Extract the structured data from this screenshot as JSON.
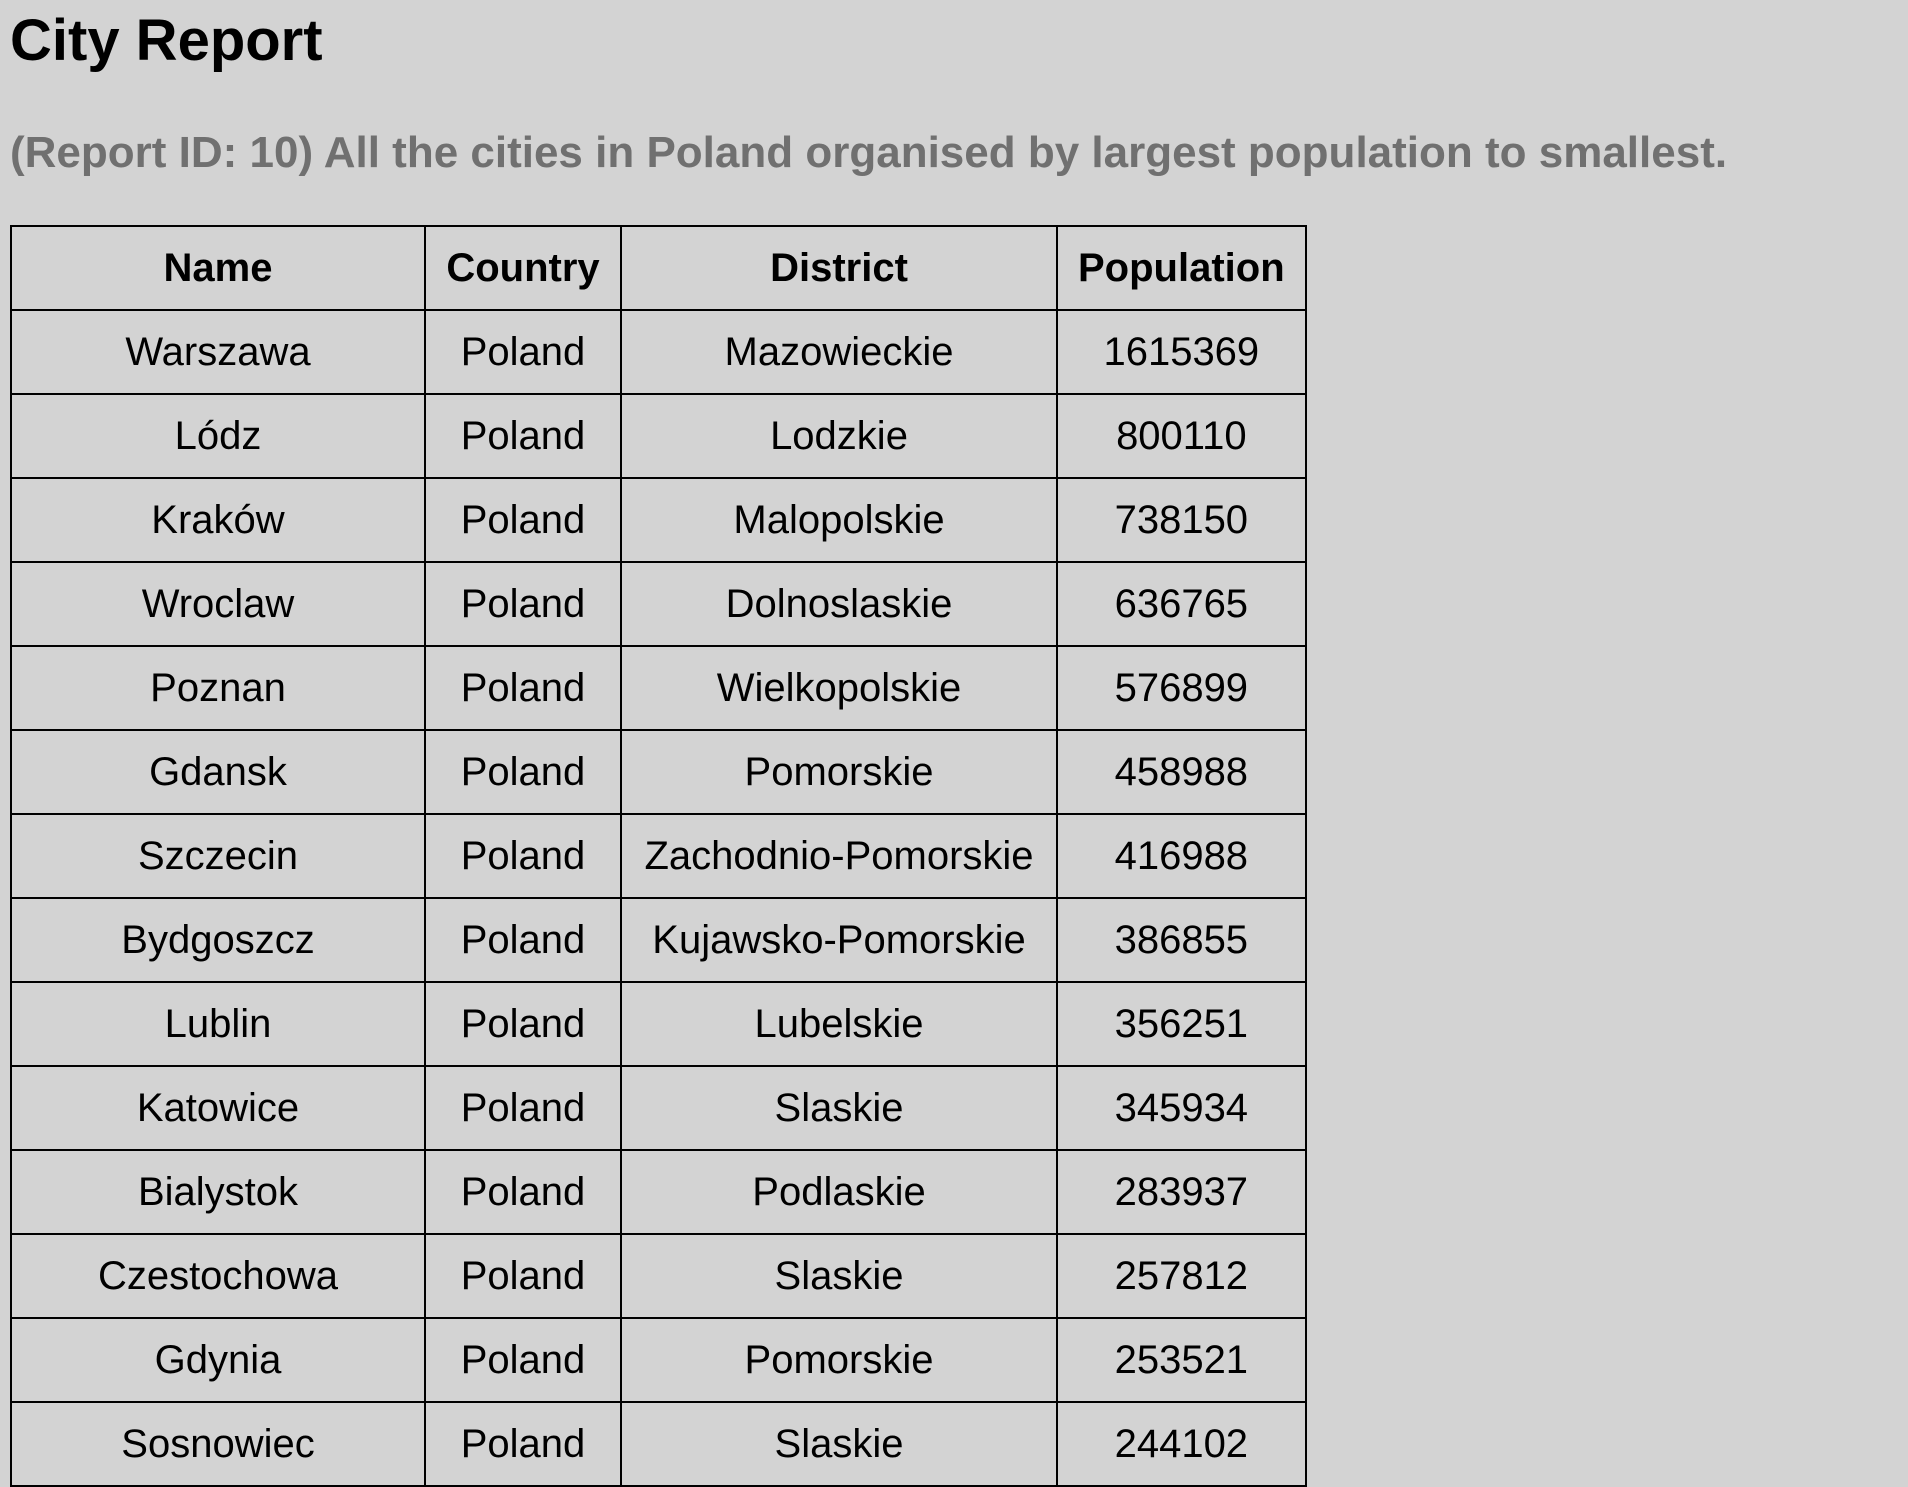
{
  "report": {
    "title": "City Report",
    "subtitle": "(Report ID: 10) All the cities in Poland organised by largest population to smallest."
  },
  "table": {
    "headers": [
      "Name",
      "Country",
      "District",
      "Population"
    ],
    "rows": [
      [
        "Warszawa",
        "Poland",
        "Mazowieckie",
        "1615369"
      ],
      [
        "Lódz",
        "Poland",
        "Lodzkie",
        "800110"
      ],
      [
        "Kraków",
        "Poland",
        "Malopolskie",
        "738150"
      ],
      [
        "Wroclaw",
        "Poland",
        "Dolnoslaskie",
        "636765"
      ],
      [
        "Poznan",
        "Poland",
        "Wielkopolskie",
        "576899"
      ],
      [
        "Gdansk",
        "Poland",
        "Pomorskie",
        "458988"
      ],
      [
        "Szczecin",
        "Poland",
        "Zachodnio-Pomorskie",
        "416988"
      ],
      [
        "Bydgoszcz",
        "Poland",
        "Kujawsko-Pomorskie",
        "386855"
      ],
      [
        "Lublin",
        "Poland",
        "Lubelskie",
        "356251"
      ],
      [
        "Katowice",
        "Poland",
        "Slaskie",
        "345934"
      ],
      [
        "Bialystok",
        "Poland",
        "Podlaskie",
        "283937"
      ],
      [
        "Czestochowa",
        "Poland",
        "Slaskie",
        "257812"
      ],
      [
        "Gdynia",
        "Poland",
        "Pomorskie",
        "253521"
      ],
      [
        "Sosnowiec",
        "Poland",
        "Slaskie",
        "244102"
      ]
    ]
  }
}
